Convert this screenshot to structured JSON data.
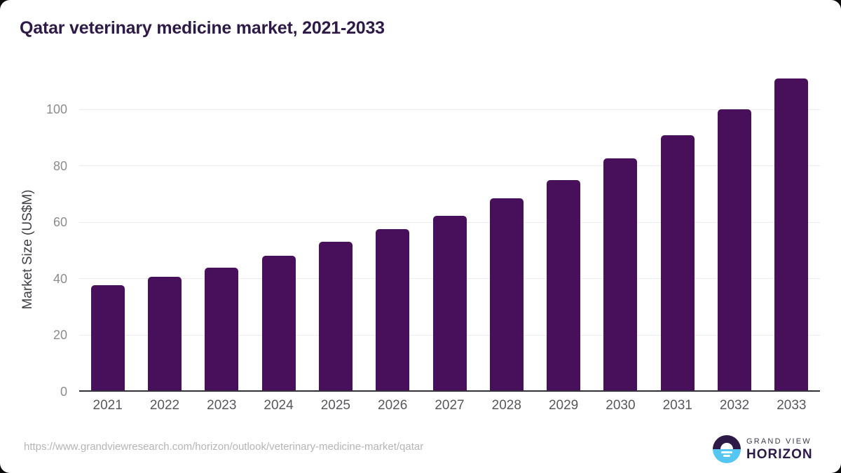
{
  "header": {
    "title": "Qatar veterinary medicine market, 2021-2033"
  },
  "chart_data": {
    "type": "bar",
    "title": "Qatar veterinary medicine market, 2021-2033",
    "categories": [
      "2021",
      "2022",
      "2023",
      "2024",
      "2025",
      "2026",
      "2027",
      "2028",
      "2029",
      "2030",
      "2031",
      "2032",
      "2033"
    ],
    "values": [
      37.8,
      40.6,
      44.0,
      48.1,
      53.0,
      57.6,
      62.3,
      68.6,
      75.0,
      82.6,
      90.8,
      100.0,
      110.9
    ],
    "xlabel": "",
    "ylabel": "Market Size (US$M)",
    "ylim": [
      0,
      115
    ],
    "yticks": [
      0,
      20,
      40,
      60,
      80,
      100
    ],
    "grid": true,
    "legend": "none"
  },
  "colors": {
    "bar": "#48105a",
    "title": "#2e1a47",
    "gridline": "#ececec",
    "axis_line": "#32303a",
    "ytick_text": "#8c8c8e",
    "xtick_text": "#57585c",
    "logo_top": "#2e1a47",
    "logo_bottom": "#55c6f2",
    "logo_horizon_text": "#2e1a47"
  },
  "footer": {
    "source_url": "https://www.grandviewresearch.com/horizon/outlook/veterinary-medicine-market/qatar",
    "logo": {
      "line1": "GRAND VIEW",
      "line2": "HORIZON"
    }
  }
}
